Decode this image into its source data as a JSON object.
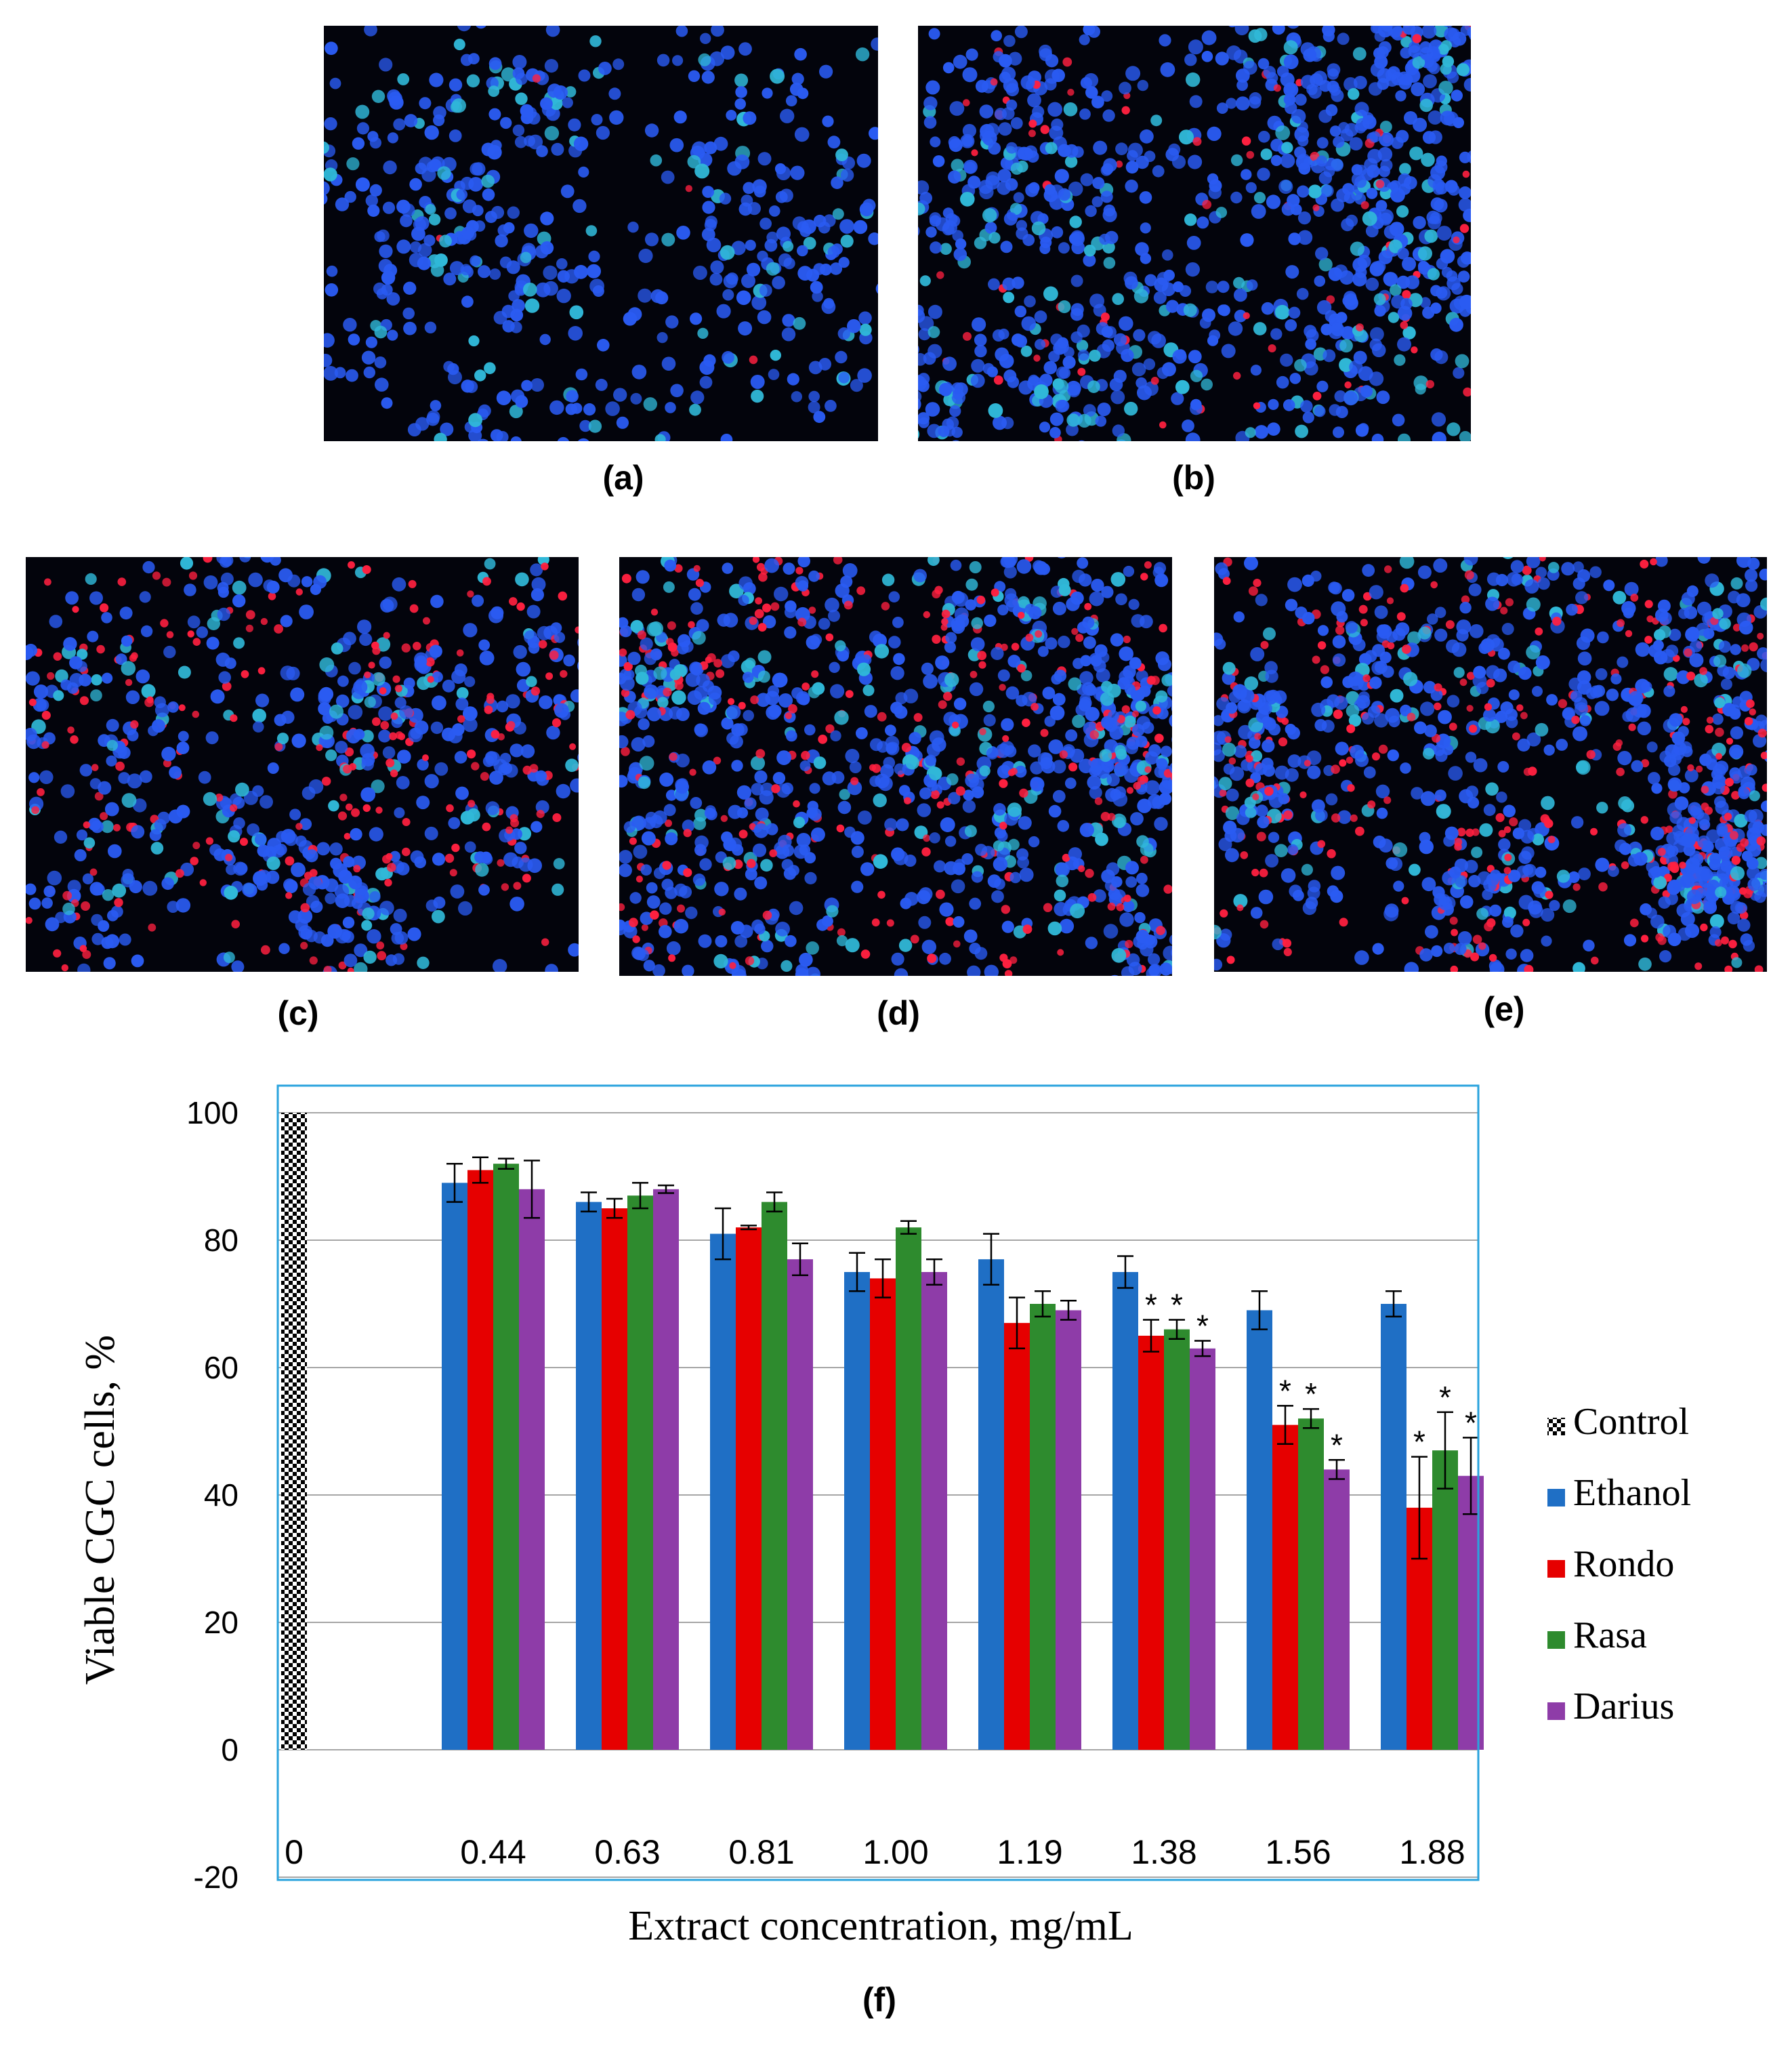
{
  "panels": [
    {
      "id": "a",
      "label": "(a)",
      "red_ratio": 0.01,
      "density": 520
    },
    {
      "id": "b",
      "label": "(b)",
      "red_ratio": 0.1,
      "density": 1000
    },
    {
      "id": "c",
      "label": "(c)",
      "red_ratio": 0.32,
      "density": 760
    },
    {
      "id": "d",
      "label": "(d)",
      "red_ratio": 0.26,
      "density": 1150
    },
    {
      "id": "e",
      "label": "(e)",
      "red_ratio": 0.3,
      "density": 1150
    }
  ],
  "colors": {
    "ethanol": "#1f6fc5",
    "rondo": "#e60000",
    "rasa": "#2e8b2e",
    "darius": "#8e3ca8",
    "frame": "#29a3dd",
    "grid": "#a6a6a6",
    "nucleus_blue": "#2a5bf2",
    "nucleus_cyan": "#30b8d8",
    "nucleus_red": "#ff2040"
  },
  "chart_data": {
    "type": "bar",
    "label": "(f)",
    "xlabel": "Extract concentration, mg/mL",
    "ylabel": "Viable CGC cells, %",
    "ylim": [
      -20,
      100
    ],
    "yticks": [
      -20,
      0,
      20,
      40,
      60,
      80,
      100
    ],
    "grid": true,
    "legend_position": "right",
    "control": {
      "name": "Control",
      "category": "0",
      "value": 100
    },
    "categories": [
      "0.44",
      "0.63",
      "0.81",
      "1.00",
      "1.19",
      "1.38",
      "1.56",
      "1.88"
    ],
    "series": [
      {
        "name": "Ethanol",
        "color_key": "ethanol",
        "values": [
          89,
          86,
          81,
          75,
          77,
          75,
          69,
          70
        ],
        "errors": [
          3,
          1.5,
          4,
          3,
          4,
          2.5,
          3,
          2
        ],
        "sig": [
          false,
          false,
          false,
          false,
          false,
          false,
          false,
          false
        ]
      },
      {
        "name": "Rondo",
        "color_key": "rondo",
        "values": [
          91,
          85,
          82,
          74,
          67,
          65,
          51,
          38
        ],
        "errors": [
          2,
          1.5,
          0.3,
          3,
          4,
          2.5,
          3,
          8
        ],
        "sig": [
          false,
          false,
          false,
          false,
          false,
          true,
          true,
          true
        ]
      },
      {
        "name": "Rasa",
        "color_key": "rasa",
        "values": [
          92,
          87,
          86,
          82,
          70,
          66,
          52,
          47
        ],
        "errors": [
          0.8,
          2,
          1.5,
          1,
          2,
          1.5,
          1.5,
          6
        ],
        "sig": [
          false,
          false,
          false,
          false,
          false,
          true,
          true,
          true
        ]
      },
      {
        "name": "Darius",
        "color_key": "darius",
        "values": [
          88,
          88,
          77,
          75,
          69,
          63,
          44,
          43
        ],
        "errors": [
          4.5,
          0.6,
          2.5,
          2,
          1.5,
          1.2,
          1.5,
          6
        ],
        "sig": [
          false,
          false,
          false,
          false,
          false,
          true,
          true,
          true
        ]
      }
    ],
    "sig_marker": "*"
  }
}
